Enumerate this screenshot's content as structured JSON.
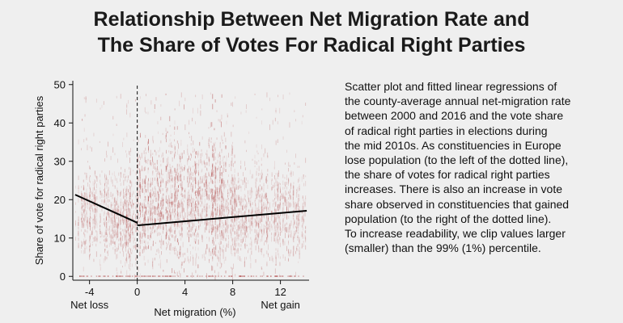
{
  "title_lines": [
    "Relationship Between Net Migration Rate and",
    "The Share of Votes For Radical Right Parties"
  ],
  "caption_lines": [
    "Scatter plot and fitted linear regressions of",
    "the county-average annual net-migration rate",
    "between 2000 and 2016 and the vote share",
    "of radical right parties in elections during",
    "the mid 2010s. As constituencies in Europe",
    "lose population (to the left of the dotted line),",
    "the share of votes for radical right parties",
    "increases. There is also an increase in vote",
    "share observed in constituencies that gained",
    "population (to the right of the dotted line).",
    "To increase readability, we clip values larger",
    "(smaller) than the 99% (1%) percentile."
  ],
  "chart_data": {
    "type": "scatter",
    "ylabel": "Share of vote for radical right parties",
    "xlabel": "Net migration (%)",
    "xlim": [
      -5.4,
      14.4
    ],
    "ylim": [
      -1,
      51
    ],
    "x_ticks": [
      -4,
      0,
      4,
      8,
      12
    ],
    "x_tick_labels": [
      "-4",
      "0",
      "4",
      "8",
      "12"
    ],
    "y_ticks": [
      0,
      10,
      20,
      30,
      40,
      50
    ],
    "y_tick_labels": [
      "0",
      "10",
      "20",
      "30",
      "40",
      "50"
    ],
    "x_annotations": [
      {
        "text": "Net loss",
        "at": -4
      },
      {
        "text": "Net gain",
        "at": 12
      }
    ],
    "reference_line": {
      "x": 0,
      "style": "dashed"
    },
    "point_color": "#b85a5a",
    "fit_color": "#000000",
    "fitted_lines": [
      {
        "points": [
          [
            -5.2,
            21.3
          ],
          [
            0,
            14.0
          ]
        ]
      },
      {
        "points": [
          [
            0,
            13.3
          ],
          [
            14.2,
            17.1
          ]
        ]
      }
    ],
    "scatter_clusters": [
      {
        "x_range": [
          -5.2,
          -1.0
        ],
        "y_center": 16,
        "y_spread": 10,
        "density": 0.5
      },
      {
        "x_range": [
          -1.0,
          0.0
        ],
        "y_center": 15,
        "y_spread": 11,
        "density": 0.9
      },
      {
        "x_range": [
          0.0,
          8.0
        ],
        "y_center": 20,
        "y_spread": 14,
        "density": 1.0
      },
      {
        "x_range": [
          8.0,
          14.2
        ],
        "y_center": 17,
        "y_spread": 11,
        "density": 0.6
      }
    ]
  }
}
